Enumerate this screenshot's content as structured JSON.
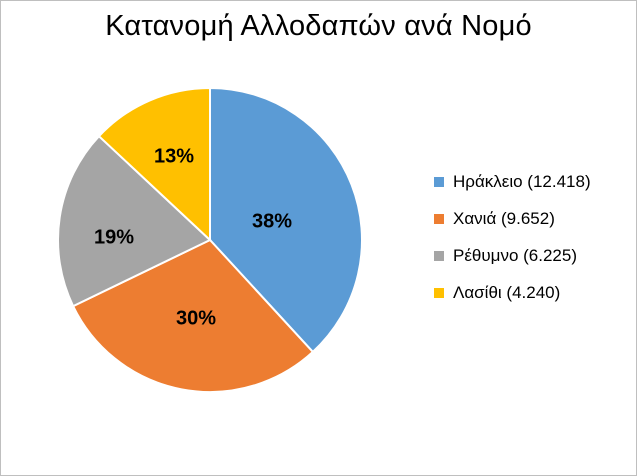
{
  "chart_data": {
    "type": "pie",
    "title": "Κατανομή Αλλοδαπών ανά Νομό",
    "categories": [
      "Ηράκλειο",
      "Χανιά",
      "Ρέθυμνο",
      "Λασίθι"
    ],
    "values": [
      12418,
      9652,
      6225,
      4240
    ],
    "percent_labels": [
      "38%",
      "30%",
      "19%",
      "13%"
    ],
    "legend_labels": [
      "Ηράκλειο (12.418)",
      "Χανιά (9.652)",
      "Ρέθυμνο (6.225)",
      "Λασίθι (4.240)"
    ],
    "colors": [
      "#5b9bd5",
      "#ed7d31",
      "#a5a5a5",
      "#ffc000"
    ],
    "legend": "right"
  }
}
